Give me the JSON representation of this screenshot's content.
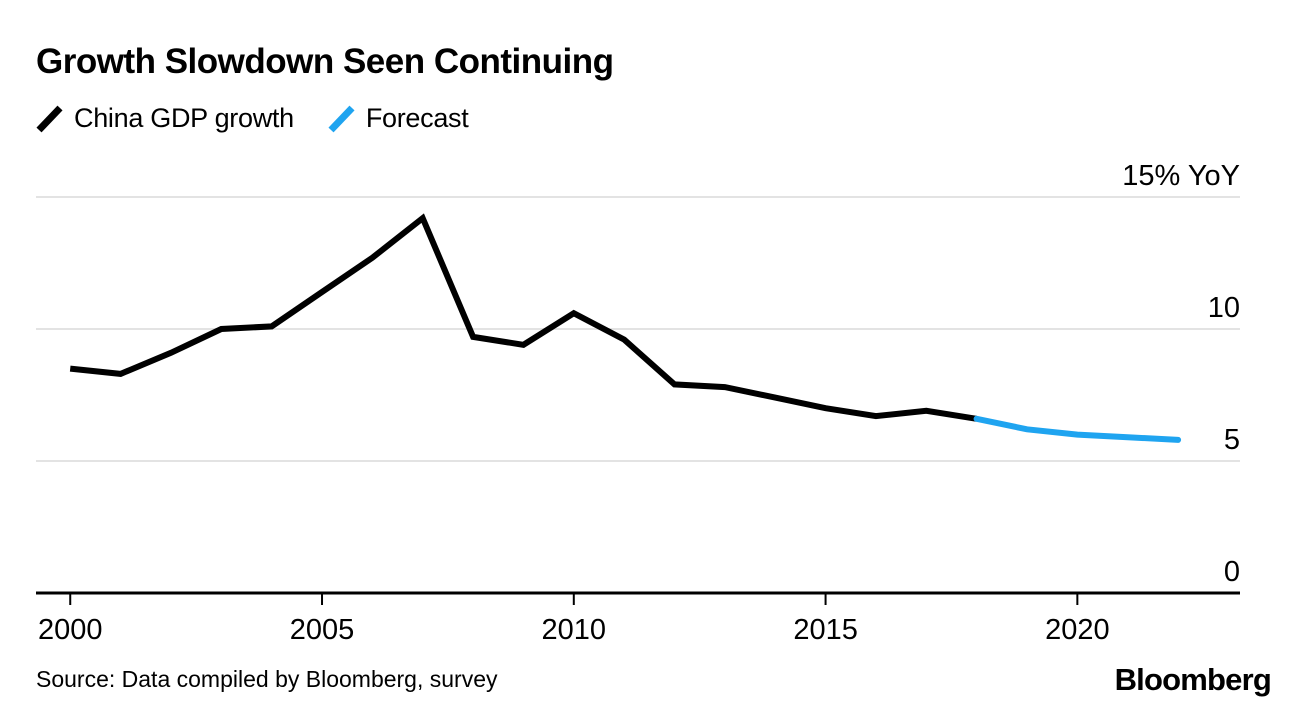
{
  "header": {
    "title": "Growth Slowdown Seen Continuing"
  },
  "legend": [
    {
      "label": "China GDP growth",
      "color": "#000000"
    },
    {
      "label": "Forecast",
      "color": "#1fa4f0"
    }
  ],
  "source": {
    "text": "Source: Data compiled by Bloomberg, survey"
  },
  "logo": {
    "text": "Bloomberg"
  },
  "colors": {
    "actual_line": "#000000",
    "forecast_line": "#1fa4f0",
    "gridline": "#e3e3e3",
    "axis": "#000000",
    "background": "#ffffff"
  },
  "chart_data": {
    "type": "line",
    "title": "Growth Slowdown Seen Continuing",
    "xlabel": "",
    "ylabel": "% YoY",
    "xlim": [
      1999.32,
      2023.23
    ],
    "ylim": [
      0,
      15
    ],
    "grid": "horizontal",
    "legend_position": "top-left",
    "series": [
      {
        "name": "China GDP growth",
        "color": "#000000",
        "x": [
          2000,
          2001,
          2002,
          2003,
          2004,
          2005,
          2006,
          2007,
          2008,
          2009,
          2010,
          2011,
          2012,
          2013,
          2014,
          2015,
          2016,
          2017,
          2018
        ],
        "values": [
          8.5,
          8.3,
          9.1,
          10.0,
          10.1,
          11.4,
          12.7,
          14.2,
          9.7,
          9.4,
          10.6,
          9.6,
          7.9,
          7.8,
          7.4,
          7.0,
          6.7,
          6.9,
          6.6
        ]
      },
      {
        "name": "Forecast",
        "color": "#1fa4f0",
        "x": [
          2018,
          2019,
          2020,
          2021,
          2022
        ],
        "values": [
          6.6,
          6.2,
          6.0,
          5.9,
          5.8
        ]
      }
    ],
    "x_ticks": [
      {
        "year": 2000,
        "label": "2000"
      },
      {
        "year": 2005,
        "label": "2005"
      },
      {
        "year": 2010,
        "label": "2010"
      },
      {
        "year": 2015,
        "label": "2015"
      },
      {
        "year": 2020,
        "label": "2020"
      }
    ],
    "y_ticks": [
      {
        "value": 0,
        "label": "0"
      },
      {
        "value": 5,
        "label": "5"
      },
      {
        "value": 10,
        "label": "10"
      },
      {
        "value": 15,
        "label": "15% YoY"
      }
    ]
  }
}
